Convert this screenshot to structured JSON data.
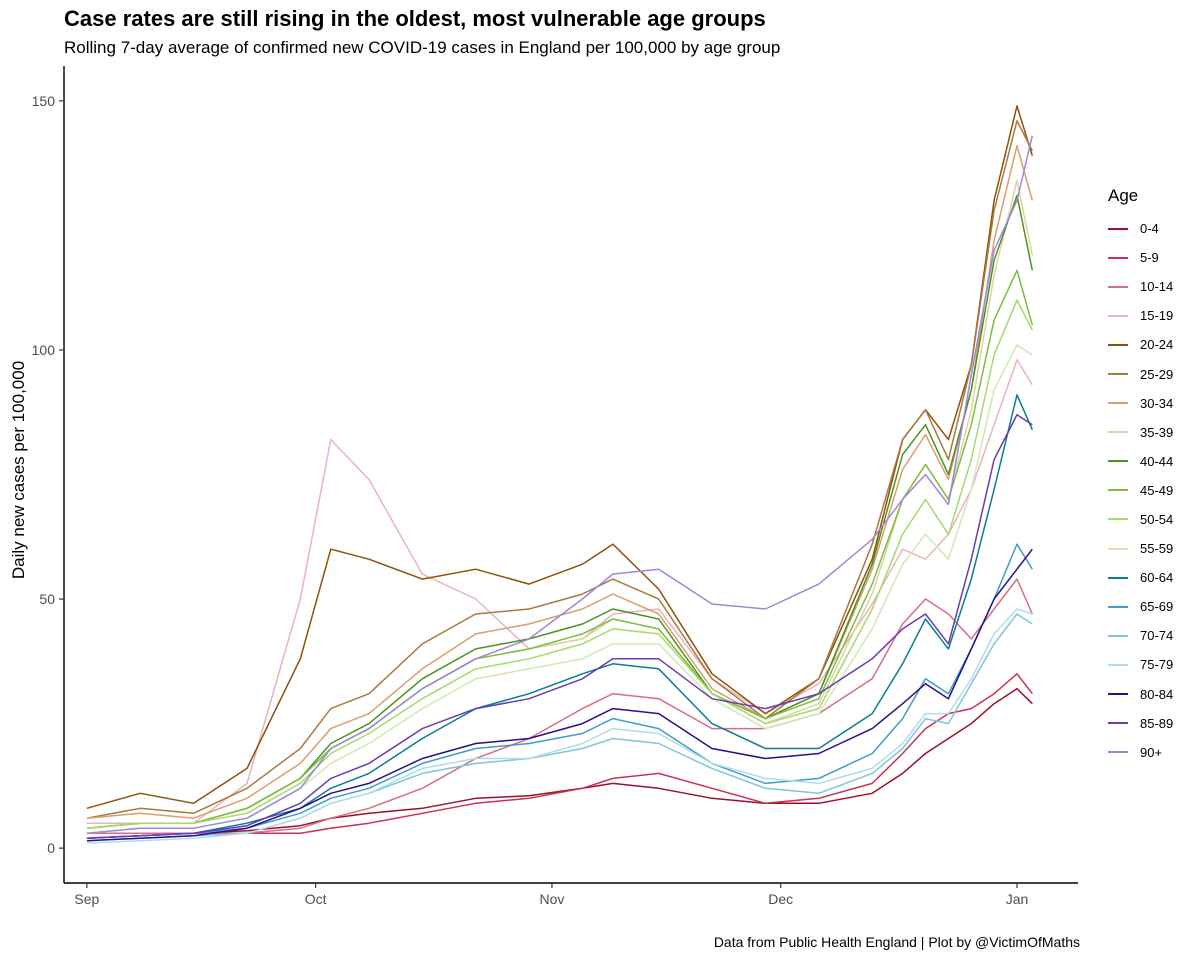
{
  "header": {
    "title": "Case rates are still rising in the oldest, most vulnerable age groups",
    "subtitle": "Rolling 7-day average of confirmed new COVID-19 cases in England per 100,000 by age group",
    "caption": "Data from Public Health England | Plot by @VictimOfMaths"
  },
  "chart_data": {
    "type": "line",
    "title": "Case rates are still rising in the oldest, most vulnerable age groups",
    "subtitle": "Rolling 7-day average of confirmed new COVID-19 cases in England per 100,000 by age group",
    "xlabel": "",
    "ylabel": "Daily new cases per 100,000",
    "legend_title": "Age",
    "legend_position": "right",
    "grid": false,
    "xlim": [
      "2020-08-29",
      "2021-01-09"
    ],
    "ylim": [
      -7,
      157
    ],
    "x_ticks": [
      {
        "date": "2020-09-01",
        "label": "Sep"
      },
      {
        "date": "2020-10-01",
        "label": "Oct"
      },
      {
        "date": "2020-11-01",
        "label": "Nov"
      },
      {
        "date": "2020-12-01",
        "label": "Dec"
      },
      {
        "date": "2021-01-01",
        "label": "Jan"
      }
    ],
    "y_ticks": [
      0,
      50,
      100,
      150
    ],
    "x": [
      "2020-09-01",
      "2020-09-08",
      "2020-09-15",
      "2020-09-22",
      "2020-09-29",
      "2020-10-03",
      "2020-10-08",
      "2020-10-15",
      "2020-10-22",
      "2020-10-29",
      "2020-11-05",
      "2020-11-09",
      "2020-11-15",
      "2020-11-22",
      "2020-11-29",
      "2020-12-06",
      "2020-12-13",
      "2020-12-17",
      "2020-12-20",
      "2020-12-23",
      "2020-12-26",
      "2020-12-29",
      "2021-01-01",
      "2021-01-03"
    ],
    "series": [
      {
        "name": "0-4",
        "color": "#9e0f2c",
        "values": [
          2,
          2.5,
          3,
          3.5,
          4.5,
          6,
          7,
          8,
          10,
          10.5,
          12,
          13,
          12,
          10,
          9,
          9,
          11,
          15,
          19,
          22,
          25,
          29,
          32,
          29
        ]
      },
      {
        "name": "5-9",
        "color": "#c93250",
        "values": [
          2,
          2.5,
          3,
          3,
          3,
          4,
          5,
          7,
          9,
          10,
          12,
          14,
          15,
          12,
          9,
          10,
          13,
          19,
          24,
          27,
          28,
          31,
          35,
          31
        ]
      },
      {
        "name": "10-14",
        "color": "#d66f86",
        "values": [
          3,
          3,
          3,
          3,
          4,
          6,
          8,
          12,
          18,
          22,
          28,
          31,
          30,
          24,
          24,
          27,
          34,
          45,
          50,
          47,
          42,
          48,
          54,
          47
        ]
      },
      {
        "name": "15-19",
        "color": "#e8b4c0",
        "values": [
          5,
          5,
          5,
          13,
          50,
          82,
          74,
          55,
          50,
          40,
          42,
          47,
          48,
          34,
          27,
          33,
          49,
          60,
          58,
          63,
          72,
          85,
          98,
          93
        ]
      },
      {
        "name": "20-24",
        "color": "#8c510a",
        "values": [
          8,
          11,
          9,
          16,
          38,
          60,
          58,
          54,
          56,
          53,
          57,
          61,
          52,
          35,
          27,
          34,
          58,
          82,
          88,
          82,
          97,
          130,
          149,
          139
        ]
      },
      {
        "name": "25-29",
        "color": "#a97a3f",
        "values": [
          6,
          8,
          7,
          12,
          20,
          28,
          31,
          41,
          47,
          48,
          51,
          54,
          50,
          34,
          26,
          34,
          61,
          82,
          88,
          78,
          97,
          128,
          146,
          140
        ]
      },
      {
        "name": "30-34",
        "color": "#d99f6c",
        "values": [
          6,
          7,
          6,
          10,
          17,
          24,
          27,
          36,
          43,
          45,
          48,
          51,
          47,
          32,
          26,
          31,
          56,
          76,
          83,
          74,
          92,
          122,
          141,
          130
        ]
      },
      {
        "name": "35-39",
        "color": "#dcd4a0",
        "values": [
          4,
          5,
          5,
          8,
          14,
          20,
          24,
          32,
          38,
          40,
          42,
          46,
          44,
          31,
          25,
          29,
          51,
          70,
          77,
          70,
          88,
          115,
          134,
          119
        ]
      },
      {
        "name": "40-44",
        "color": "#4d9221",
        "values": [
          4,
          5,
          5,
          8,
          14,
          21,
          25,
          34,
          40,
          42,
          45,
          48,
          46,
          31,
          26,
          31,
          57,
          79,
          85,
          75,
          92,
          118,
          131,
          116
        ]
      },
      {
        "name": "45-49",
        "color": "#7fbc41",
        "values": [
          4,
          5,
          5,
          8,
          14,
          20,
          24,
          32,
          38,
          40,
          43,
          46,
          44,
          31,
          26,
          30,
          53,
          70,
          77,
          70,
          85,
          106,
          116,
          105
        ]
      },
      {
        "name": "50-54",
        "color": "#a6d96a",
        "values": [
          4,
          5,
          5,
          7,
          13,
          19,
          23,
          30,
          36,
          38,
          41,
          44,
          43,
          31,
          25,
          28,
          48,
          63,
          70,
          63,
          78,
          99,
          110,
          104
        ]
      },
      {
        "name": "55-59",
        "color": "#d2e7b6",
        "values": [
          3,
          4,
          4,
          6,
          12,
          17,
          21,
          28,
          34,
          36,
          38,
          41,
          41,
          30,
          24,
          27,
          44,
          57,
          63,
          58,
          72,
          92,
          101,
          99
        ]
      },
      {
        "name": "60-64",
        "color": "#0a7d92",
        "values": [
          2,
          2.5,
          3,
          5,
          8,
          12,
          15,
          22,
          28,
          31,
          35,
          37,
          36,
          25,
          20,
          20,
          27,
          37,
          46,
          40,
          54,
          72,
          91,
          84
        ]
      },
      {
        "name": "65-69",
        "color": "#3f9ec2",
        "values": [
          2,
          2.5,
          3,
          4,
          7,
          10,
          12,
          17,
          20,
          21,
          23,
          26,
          24,
          17,
          13,
          14,
          19,
          26,
          34,
          31,
          40,
          50,
          61,
          56
        ]
      },
      {
        "name": "70-74",
        "color": "#7fc6db",
        "values": [
          1.5,
          2,
          2.5,
          3,
          6,
          9,
          11,
          15,
          17,
          18,
          20,
          22,
          21,
          16,
          12,
          11,
          15,
          20,
          26,
          25,
          33,
          41,
          47,
          45
        ]
      },
      {
        "name": "75-79",
        "color": "#b4dbe9",
        "values": [
          1,
          1.5,
          2,
          3,
          6,
          9,
          11,
          16,
          18,
          18,
          21,
          24,
          23,
          17,
          14,
          13,
          16,
          21,
          27,
          27,
          34,
          43,
          48,
          47
        ]
      },
      {
        "name": "80-84",
        "color": "#2a0e8c",
        "values": [
          1.5,
          2,
          2.5,
          4,
          8,
          11,
          13,
          18,
          21,
          22,
          25,
          28,
          27,
          20,
          18,
          19,
          24,
          29,
          33,
          30,
          40,
          50,
          56,
          60
        ]
      },
      {
        "name": "85-89",
        "color": "#6a3bb4",
        "values": [
          2,
          2.5,
          3,
          4.5,
          9,
          14,
          17,
          24,
          28,
          30,
          34,
          38,
          38,
          30,
          28,
          31,
          38,
          44,
          47,
          41,
          58,
          78,
          87,
          85
        ]
      },
      {
        "name": "90+",
        "color": "#9f86d8",
        "values": [
          3,
          4,
          4,
          6,
          12,
          20,
          24,
          32,
          38,
          42,
          50,
          55,
          56,
          49,
          48,
          53,
          62,
          70,
          75,
          69,
          95,
          120,
          130,
          143
        ]
      }
    ]
  }
}
